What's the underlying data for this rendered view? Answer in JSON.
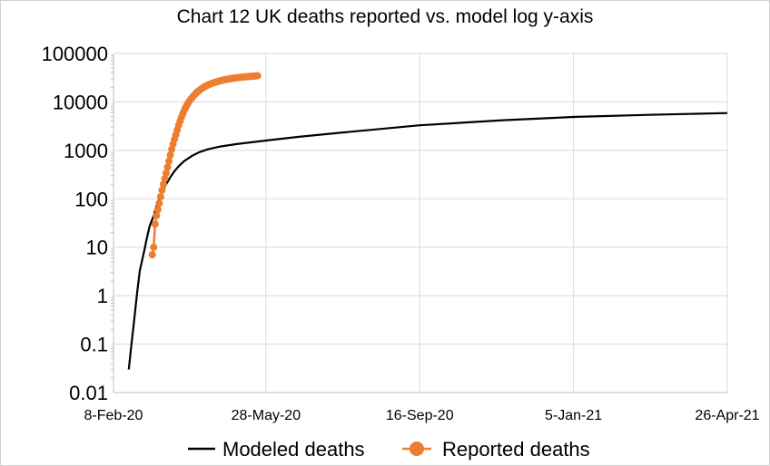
{
  "chart_data": {
    "type": "line",
    "title": "Chart 12 UK deaths reported vs. model log y-axis",
    "yscale": "log",
    "ylim": [
      0.01,
      100000
    ],
    "xlim": [
      "2020-02-08",
      "2021-04-26"
    ],
    "grid": true,
    "legend_position": "bottom",
    "y_tick_labels": [
      "0.01",
      "0.1",
      "1",
      "10",
      "100",
      "1000",
      "10000",
      "100000"
    ],
    "x_ticks": [
      {
        "date": "2020-02-08",
        "label": "8-Feb-20"
      },
      {
        "date": "2020-05-28",
        "label": "28-May-20"
      },
      {
        "date": "2020-09-16",
        "label": "16-Sep-20"
      },
      {
        "date": "2021-01-05",
        "label": "5-Jan-21"
      },
      {
        "date": "2021-04-26",
        "label": "26-Apr-21"
      }
    ],
    "series": [
      {
        "name": "Modeled deaths",
        "color": "#000000",
        "marker": "none",
        "x": [
          "2020-02-19",
          "2020-02-21",
          "2020-02-23",
          "2020-02-25",
          "2020-02-27",
          "2020-03-01",
          "2020-03-03",
          "2020-03-05",
          "2020-03-08",
          "2020-03-10",
          "2020-03-12",
          "2020-03-14",
          "2020-03-17",
          "2020-03-20",
          "2020-03-23",
          "2020-03-26",
          "2020-03-30",
          "2020-04-05",
          "2020-04-10",
          "2020-04-16",
          "2020-04-25",
          "2020-05-07",
          "2020-05-28",
          "2020-06-20",
          "2020-07-20",
          "2020-09-16",
          "2020-11-15",
          "2021-01-05",
          "2021-02-28",
          "2021-04-26"
        ],
        "values": [
          0.03,
          0.1,
          0.33,
          1.1,
          3.3,
          8,
          15,
          27,
          45,
          70,
          100,
          140,
          200,
          280,
          370,
          470,
          600,
          780,
          920,
          1050,
          1200,
          1350,
          1600,
          1900,
          2300,
          3300,
          4200,
          4900,
          5400,
          5900
        ]
      },
      {
        "name": "Reported deaths",
        "color": "#ED7D31",
        "marker": "circle",
        "x": [
          "2020-03-07",
          "2020-03-08",
          "2020-03-09",
          "2020-03-10",
          "2020-03-11",
          "2020-03-12",
          "2020-03-13",
          "2020-03-14",
          "2020-03-15",
          "2020-03-16",
          "2020-03-17",
          "2020-03-18",
          "2020-03-19",
          "2020-03-20",
          "2020-03-21",
          "2020-03-22",
          "2020-03-23",
          "2020-03-24",
          "2020-03-25",
          "2020-03-26",
          "2020-03-27",
          "2020-03-28",
          "2020-03-29",
          "2020-03-30",
          "2020-03-31",
          "2020-04-01",
          "2020-04-02",
          "2020-04-03",
          "2020-04-04",
          "2020-04-05",
          "2020-04-06",
          "2020-04-07",
          "2020-04-08",
          "2020-04-09",
          "2020-04-10",
          "2020-04-11",
          "2020-04-12",
          "2020-04-13",
          "2020-04-14",
          "2020-04-15",
          "2020-04-16",
          "2020-04-17",
          "2020-04-18",
          "2020-04-19",
          "2020-04-20",
          "2020-04-21",
          "2020-04-22",
          "2020-04-23",
          "2020-04-24",
          "2020-04-25",
          "2020-04-26",
          "2020-04-27",
          "2020-04-28",
          "2020-04-29",
          "2020-04-30",
          "2020-05-01",
          "2020-05-02",
          "2020-05-03",
          "2020-05-04",
          "2020-05-05",
          "2020-05-06",
          "2020-05-07",
          "2020-05-08",
          "2020-05-09",
          "2020-05-10",
          "2020-05-11",
          "2020-05-12",
          "2020-05-13",
          "2020-05-14",
          "2020-05-15",
          "2020-05-16",
          "2020-05-17",
          "2020-05-18",
          "2020-05-19",
          "2020-05-20",
          "2020-05-21",
          "2020-05-22"
        ],
        "values": [
          7,
          10,
          30,
          45,
          60,
          80,
          110,
          150,
          200,
          260,
          340,
          450,
          600,
          800,
          1050,
          1350,
          1700,
          2100,
          2650,
          3300,
          4000,
          4800,
          5700,
          6600,
          7600,
          8600,
          9600,
          10600,
          11600,
          12600,
          13600,
          14600,
          15600,
          16500,
          17400,
          18300,
          19200,
          20000,
          20800,
          21500,
          22200,
          22900,
          23500,
          24100,
          24700,
          25300,
          25800,
          26300,
          26800,
          27300,
          27800,
          28200,
          28600,
          29000,
          29400,
          29800,
          30100,
          30400,
          30700,
          31000,
          31300,
          31600,
          31900,
          32100,
          32300,
          32500,
          32700,
          32900,
          33100,
          33300,
          33500,
          33700,
          33900,
          34100,
          34300,
          34500,
          34700
        ]
      }
    ]
  }
}
